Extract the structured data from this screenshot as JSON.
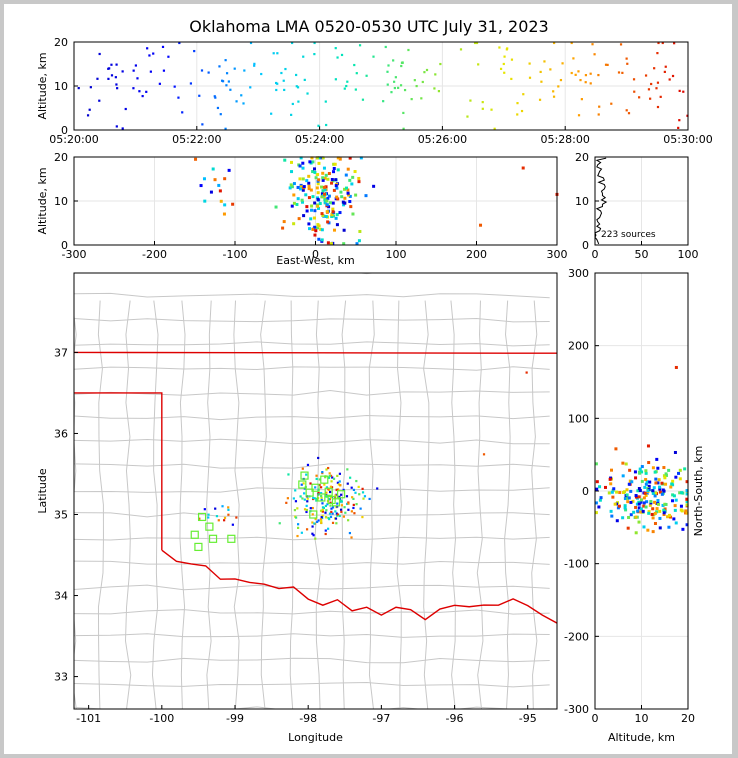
{
  "title": "Oklahoma LMA 0520-0530 UTC July 31, 2023",
  "colors": {
    "border_state": "#dd0000",
    "county_lines": "#c8c8c8",
    "grid": "#e6e6e6",
    "station": "#66ee33"
  },
  "chart_data": [
    {
      "panel": "altitude-vs-time",
      "type": "scatter",
      "xlabel": "",
      "ylabel": "Altitude, km",
      "xticks": [
        "05:20:00",
        "05:22:00",
        "05:24:00",
        "05:26:00",
        "05:28:00",
        "05:30:00"
      ],
      "xlim_minutes": [
        0,
        10
      ],
      "ylim": [
        0,
        20
      ],
      "yticks": [
        0,
        10,
        20
      ],
      "colormap": "time (blue → cyan → green → yellow → orange → red)"
    },
    {
      "panel": "altitude-vs-east-west",
      "type": "scatter",
      "xlabel": "East-West, km",
      "ylabel": "Altitude, km",
      "xlim": [
        -300,
        300
      ],
      "xticks": [
        -300,
        -200,
        -100,
        0,
        100,
        200,
        300
      ],
      "ylim": [
        0,
        20
      ],
      "yticks": [
        0,
        10,
        20
      ]
    },
    {
      "panel": "altitude-histogram",
      "type": "line",
      "annotation": "223 sources",
      "xlim": [
        0,
        100
      ],
      "xticks": [
        0,
        50,
        100
      ],
      "ylim": [
        0,
        20
      ],
      "yticks": [
        0,
        10,
        20
      ]
    },
    {
      "panel": "plan-view-map",
      "type": "scatter",
      "xlabel": "Longitude",
      "ylabel": "Latitude",
      "xlim": [
        -101.2,
        -94.6
      ],
      "ylim": [
        32.6,
        37.98
      ],
      "xticks": [
        -101,
        -100,
        -99,
        -98,
        -97,
        -96,
        -95
      ],
      "yticks": [
        33,
        34,
        35,
        36,
        37
      ],
      "storm_center": [
        -97.85,
        35.22
      ],
      "stations": [
        [
          -98.05,
          35.48
        ],
        [
          -97.78,
          35.43
        ],
        [
          -98.08,
          35.37
        ],
        [
          -97.9,
          35.33
        ],
        [
          -97.98,
          35.27
        ],
        [
          -97.72,
          35.28
        ],
        [
          -97.82,
          35.21
        ],
        [
          -97.55,
          35.25
        ],
        [
          -97.62,
          35.15
        ],
        [
          -97.93,
          35.0
        ],
        [
          -97.68,
          35.18
        ],
        [
          -99.45,
          34.97
        ],
        [
          -99.35,
          34.85
        ],
        [
          -99.55,
          34.75
        ],
        [
          -99.3,
          34.7
        ],
        [
          -99.5,
          34.6
        ],
        [
          -99.05,
          34.7
        ]
      ]
    },
    {
      "panel": "north-south-vs-altitude",
      "type": "scatter",
      "xlabel": "Altitude, km",
      "ylabel": "North-South, km",
      "xlim": [
        0,
        20
      ],
      "xticks": [
        0,
        10,
        20
      ],
      "ylim": [
        -300,
        300
      ],
      "yticks": [
        -300,
        -200,
        -100,
        0,
        100,
        200,
        300
      ]
    }
  ]
}
